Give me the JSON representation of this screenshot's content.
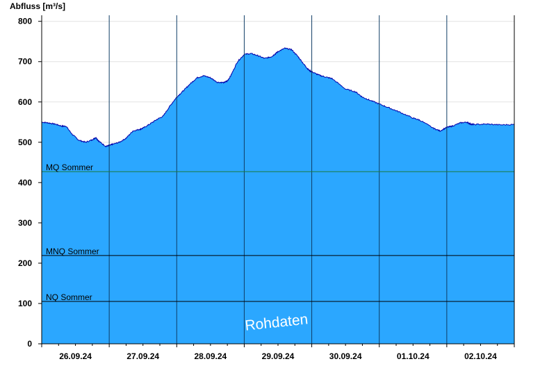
{
  "chart_data": {
    "type": "area",
    "ylabel": "Abfluss [m³/s]",
    "ylim": [
      0,
      815
    ],
    "y_ticks": [
      0,
      100,
      200,
      300,
      400,
      500,
      600,
      700,
      800
    ],
    "x_range_days": [
      0,
      7
    ],
    "x_tick_labels": [
      "26.09.24",
      "27.09.24",
      "28.09.24",
      "29.09.24",
      "30.09.24",
      "01.10.24",
      "02.10.24"
    ],
    "grid": true,
    "watermark": "Rohdaten",
    "reference_lines": [
      {
        "label": "MQ Sommer",
        "value": 427,
        "color": "#1a7a3a"
      },
      {
        "label": "MNQ Sommer",
        "value": 219,
        "color": "#000000"
      },
      {
        "label": "NQ Sommer",
        "value": 105,
        "color": "#000000"
      }
    ],
    "colors": {
      "area": "#2ba7ff",
      "line": "#0000aa",
      "day_separator": "#0f3d66",
      "grid": "#e2e2e2"
    },
    "series": [
      {
        "x": [
          0.0,
          0.1,
          0.2,
          0.3,
          0.36,
          0.45,
          0.55,
          0.65,
          0.75,
          0.8,
          0.85,
          0.95,
          1.0,
          1.05,
          1.15,
          1.25,
          1.35,
          1.45,
          1.5,
          1.6,
          1.7,
          1.8,
          1.9,
          2.0,
          2.1,
          2.2,
          2.3,
          2.4,
          2.5,
          2.6,
          2.7,
          2.75,
          2.8,
          2.9,
          3.0,
          3.1,
          3.2,
          3.3,
          3.4,
          3.45,
          3.5,
          3.6,
          3.7,
          3.8,
          3.9,
          3.95,
          4.0,
          4.1,
          4.2,
          4.3,
          4.5,
          4.65,
          4.75,
          4.85,
          5.0,
          5.15,
          5.3,
          5.5,
          5.6,
          5.8,
          5.9,
          6.0,
          6.08,
          6.2,
          6.3,
          6.35,
          6.4,
          6.6,
          6.8,
          7.0
        ],
        "y": [
          550,
          548,
          545,
          540,
          540,
          520,
          505,
          500,
          506,
          512,
          502,
          490,
          492,
          495,
          500,
          510,
          528,
          532,
          535,
          545,
          556,
          565,
          590,
          612,
          628,
          645,
          660,
          665,
          660,
          649,
          648,
          652,
          665,
          700,
          718,
          720,
          715,
          708,
          712,
          718,
          725,
          733,
          730,
          712,
          690,
          680,
          675,
          667,
          662,
          658,
          632,
          625,
          612,
          605,
          595,
          585,
          575,
          560,
          555,
          535,
          528,
          537,
          540,
          548,
          550,
          545,
          544,
          545,
          543,
          544
        ]
      }
    ]
  }
}
